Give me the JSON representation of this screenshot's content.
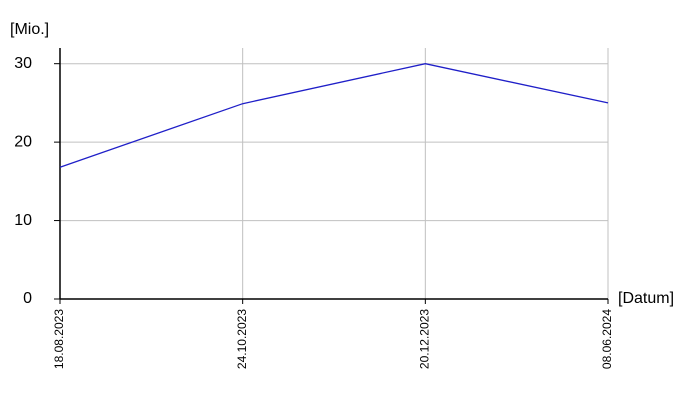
{
  "chart_data": {
    "type": "line",
    "y_label": "[Mio.]",
    "x_label": "[Datum]",
    "categories": [
      "18.08.2023",
      "24.10.2023",
      "20.12.2023",
      "08.06.2024"
    ],
    "values": [
      16.8,
      24.9,
      30,
      25
    ],
    "color": "#1f1fc8",
    "ylim": [
      0,
      32
    ],
    "yticks": [
      0,
      10,
      20,
      30
    ],
    "grid": true
  }
}
